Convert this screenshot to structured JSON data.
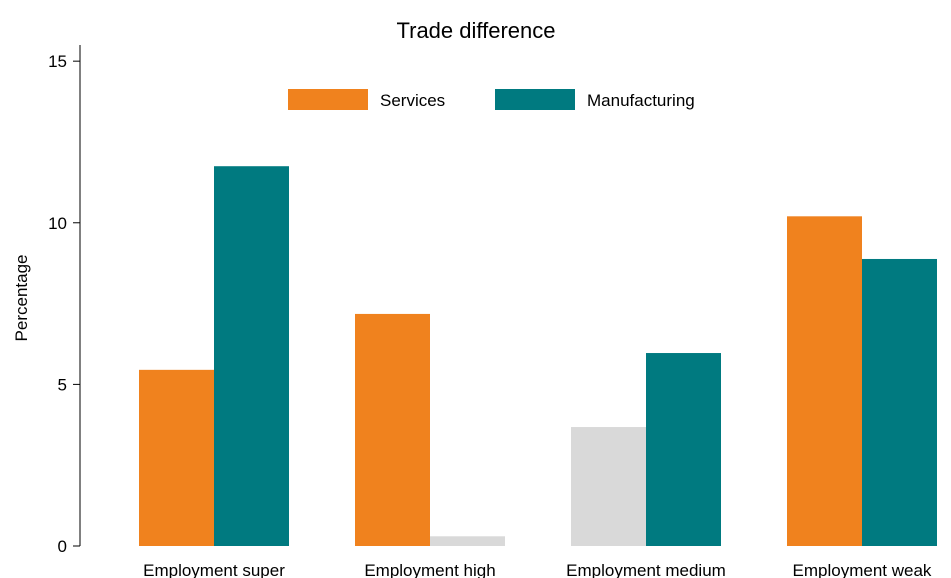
{
  "chart_data": {
    "type": "bar",
    "title": "Trade difference",
    "ylabel": "Percentage",
    "xlabel": "",
    "ylim": [
      0,
      15.5
    ],
    "yticks": [
      0,
      5,
      10,
      15
    ],
    "grid": false,
    "legend_position": "top-center",
    "categories": [
      "Employment super",
      "Employment high",
      "Employment medium",
      "Employment weak"
    ],
    "series": [
      {
        "name": "Services",
        "color": "#F0821E",
        "values": [
          5.45,
          7.18,
          3.68,
          10.2
        ],
        "bar_colors": [
          "#F0821E",
          "#F0821E",
          "#D9D9D9",
          "#F0821E"
        ]
      },
      {
        "name": "Manufacturing",
        "color": "#007A80",
        "values": [
          11.75,
          0.3,
          5.97,
          8.88
        ],
        "bar_colors": [
          "#007A80",
          "#D9D9D9",
          "#007A80",
          "#007A80"
        ]
      }
    ]
  }
}
